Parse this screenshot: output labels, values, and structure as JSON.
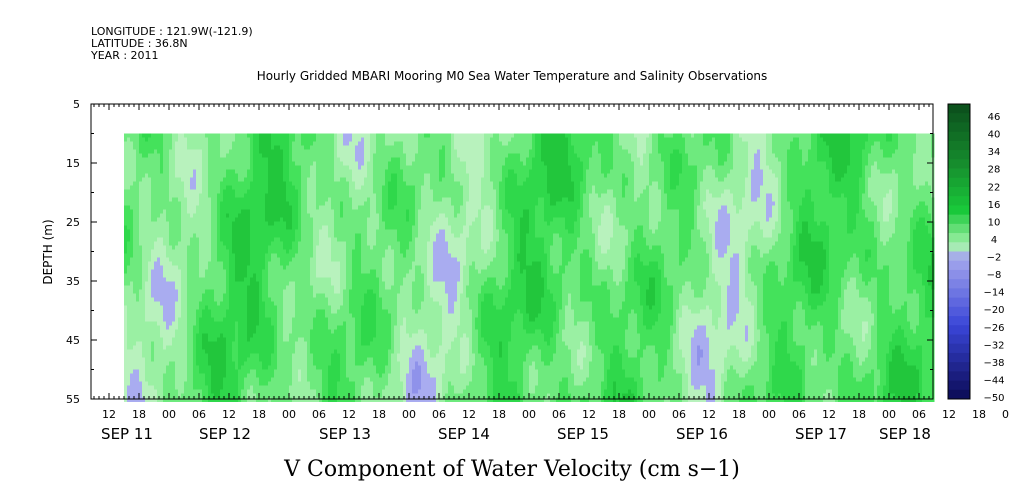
{
  "header": {
    "longitude": "LONGITUDE : 121.9W(-121.9)",
    "latitude": "LATITUDE : 36.8N",
    "year": "YEAR : 2011"
  },
  "chart_data": {
    "type": "heatmap",
    "title": "Hourly Gridded MBARI Mooring M0 Sea Water Temperature and Salinity Observations",
    "xlabel": "V Component of Water Velocity (cm s−1)",
    "ylabel": "DEPTH (m)",
    "y_axis": {
      "range": [
        5,
        55
      ],
      "reversed": true,
      "ticks": [
        5,
        15,
        25,
        35,
        45,
        55
      ],
      "data_depth_range": [
        10,
        55
      ]
    },
    "x_axis": {
      "hour_ticks": [
        "12",
        "18",
        "00",
        "06",
        "12",
        "18",
        "00",
        "06",
        "12",
        "18",
        "00",
        "06",
        "12",
        "18",
        "00",
        "06",
        "12",
        "18",
        "00",
        "06",
        "12",
        "18",
        "00",
        "06",
        "12",
        "18",
        "00",
        "06",
        "12",
        "18",
        "00",
        "06"
      ],
      "date_labels": [
        "SEP 11",
        "SEP 12",
        "SEP 13",
        "SEP 14",
        "SEP 15",
        "SEP 16",
        "SEP 17",
        "SEP 18"
      ],
      "data_start": "SEP 11 15:00"
    },
    "colorbar": {
      "labels": [
        "46",
        "40",
        "34",
        "28",
        "22",
        "16",
        "10",
        "4",
        "−2",
        "−8",
        "−14",
        "−20",
        "−26",
        "−32",
        "−38",
        "−44",
        "−50"
      ],
      "colors": {
        "dark_green": "#0b4d1c",
        "green": "#19c83a",
        "light_green": "#a6f2ad",
        "light_blue": "#a6a8ee",
        "blue": "#3a46d8",
        "dark_blue": "#0b0b55"
      }
    },
    "annotations": [],
    "grid": false
  }
}
